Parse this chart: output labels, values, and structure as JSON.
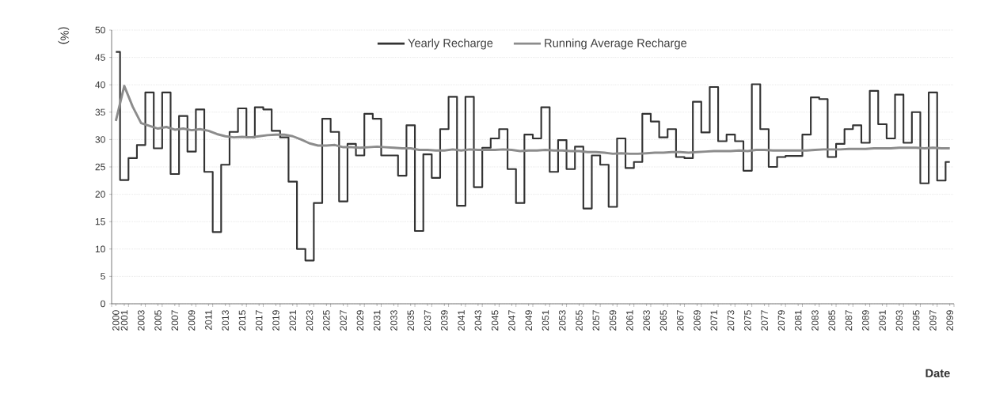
{
  "chart_data": {
    "type": "step",
    "ylabel": "(%)",
    "xlabel": "Date",
    "categories": [
      "2000",
      "2001",
      null,
      "2003",
      null,
      "2005",
      null,
      "2007",
      null,
      "2009",
      null,
      "2011",
      null,
      "2013",
      null,
      "2015",
      null,
      "2017",
      null,
      "2019",
      null,
      "2021",
      null,
      "2023",
      null,
      "2025",
      null,
      "2027",
      null,
      "2029",
      null,
      "2031",
      null,
      "2033",
      null,
      "2035",
      null,
      "2037",
      null,
      "2039",
      null,
      "2041",
      null,
      "2043",
      null,
      "2045",
      null,
      "2047",
      null,
      "2049",
      null,
      "2051",
      null,
      "2053",
      null,
      "2055",
      null,
      "2057",
      null,
      "2059",
      null,
      "2061",
      null,
      "2063",
      null,
      "2065",
      null,
      "2067",
      null,
      "2069",
      null,
      "2071",
      null,
      "2073",
      null,
      "2075",
      null,
      "2077",
      null,
      "2079",
      null,
      "2081",
      null,
      "2083",
      null,
      "2085",
      null,
      "2087",
      null,
      "2089",
      null,
      "2091",
      null,
      "2093",
      null,
      "2095",
      null,
      "2097",
      null,
      "2099"
    ],
    "series": [
      {
        "name": "Yearly Recharge",
        "color": "#333333",
        "values": [
          46,
          22.6,
          26.6,
          29,
          38.6,
          28.4,
          38.6,
          23.7,
          34.3,
          27.8,
          35.5,
          24.1,
          13.1,
          25.4,
          31.4,
          35.7,
          30.4,
          35.9,
          35.5,
          31.6,
          30.4,
          22.3,
          10,
          7.9,
          18.4,
          33.8,
          31.4,
          18.7,
          29.2,
          27.1,
          34.7,
          33.8,
          27.1,
          27.1,
          23.4,
          32.6,
          13.3,
          27.3,
          23,
          31.9,
          37.8,
          17.9,
          37.8,
          21.3,
          28.5,
          30.2,
          31.9,
          24.6,
          18.4,
          30.9,
          30.2,
          35.9,
          24.1,
          29.9,
          24.6,
          28.7,
          17.4,
          27.1,
          25.4,
          17.7,
          30.2,
          24.8,
          25.9,
          34.7,
          33.3,
          30.4,
          31.9,
          26.8,
          26.6,
          36.9,
          31.3,
          39.6,
          29.7,
          30.9,
          29.7,
          24.3,
          40.1,
          31.9,
          25,
          26.8,
          27,
          27,
          30.9,
          37.7,
          37.4,
          26.8,
          29.2,
          31.9,
          32.6,
          29.4,
          38.9,
          32.8,
          30.2,
          38.2,
          29.4,
          35,
          22,
          38.6,
          22.5,
          25.9
        ]
      },
      {
        "name": "Running Average Recharge",
        "type": "line",
        "color": "#8c8c8c",
        "values": [
          33.4,
          39.8,
          36,
          33,
          32.5,
          32,
          32.3,
          31.8,
          32,
          31.7,
          31.9,
          31.6,
          31,
          30.6,
          30.4,
          30.5,
          30.4,
          30.6,
          30.8,
          30.9,
          30.9,
          30.6,
          30,
          29.3,
          28.9,
          28.9,
          29,
          28.6,
          28.6,
          28.5,
          28.6,
          28.7,
          28.6,
          28.5,
          28.4,
          28.4,
          28.1,
          28.1,
          28,
          28,
          28.2,
          28,
          28.2,
          28.1,
          28.1,
          28.1,
          28.2,
          28.1,
          27.9,
          28,
          28,
          28.1,
          28,
          28,
          27.9,
          27.9,
          27.7,
          27.7,
          27.6,
          27.4,
          27.5,
          27.4,
          27.4,
          27.5,
          27.6,
          27.6,
          27.7,
          27.7,
          27.6,
          27.7,
          27.8,
          27.9,
          27.9,
          27.9,
          28,
          27.9,
          28.1,
          28.1,
          28,
          28,
          28,
          28,
          28,
          28.1,
          28.2,
          28.2,
          28.2,
          28.3,
          28.3,
          28.3,
          28.4,
          28.4,
          28.4,
          28.5,
          28.5,
          28.5,
          28.4,
          28.5,
          28.4,
          28.4
        ]
      }
    ],
    "ylim": [
      0,
      50
    ],
    "yticks": [
      0,
      5,
      10,
      15,
      20,
      25,
      30,
      35,
      40,
      45,
      50
    ],
    "grid": "y",
    "legend": "top"
  }
}
